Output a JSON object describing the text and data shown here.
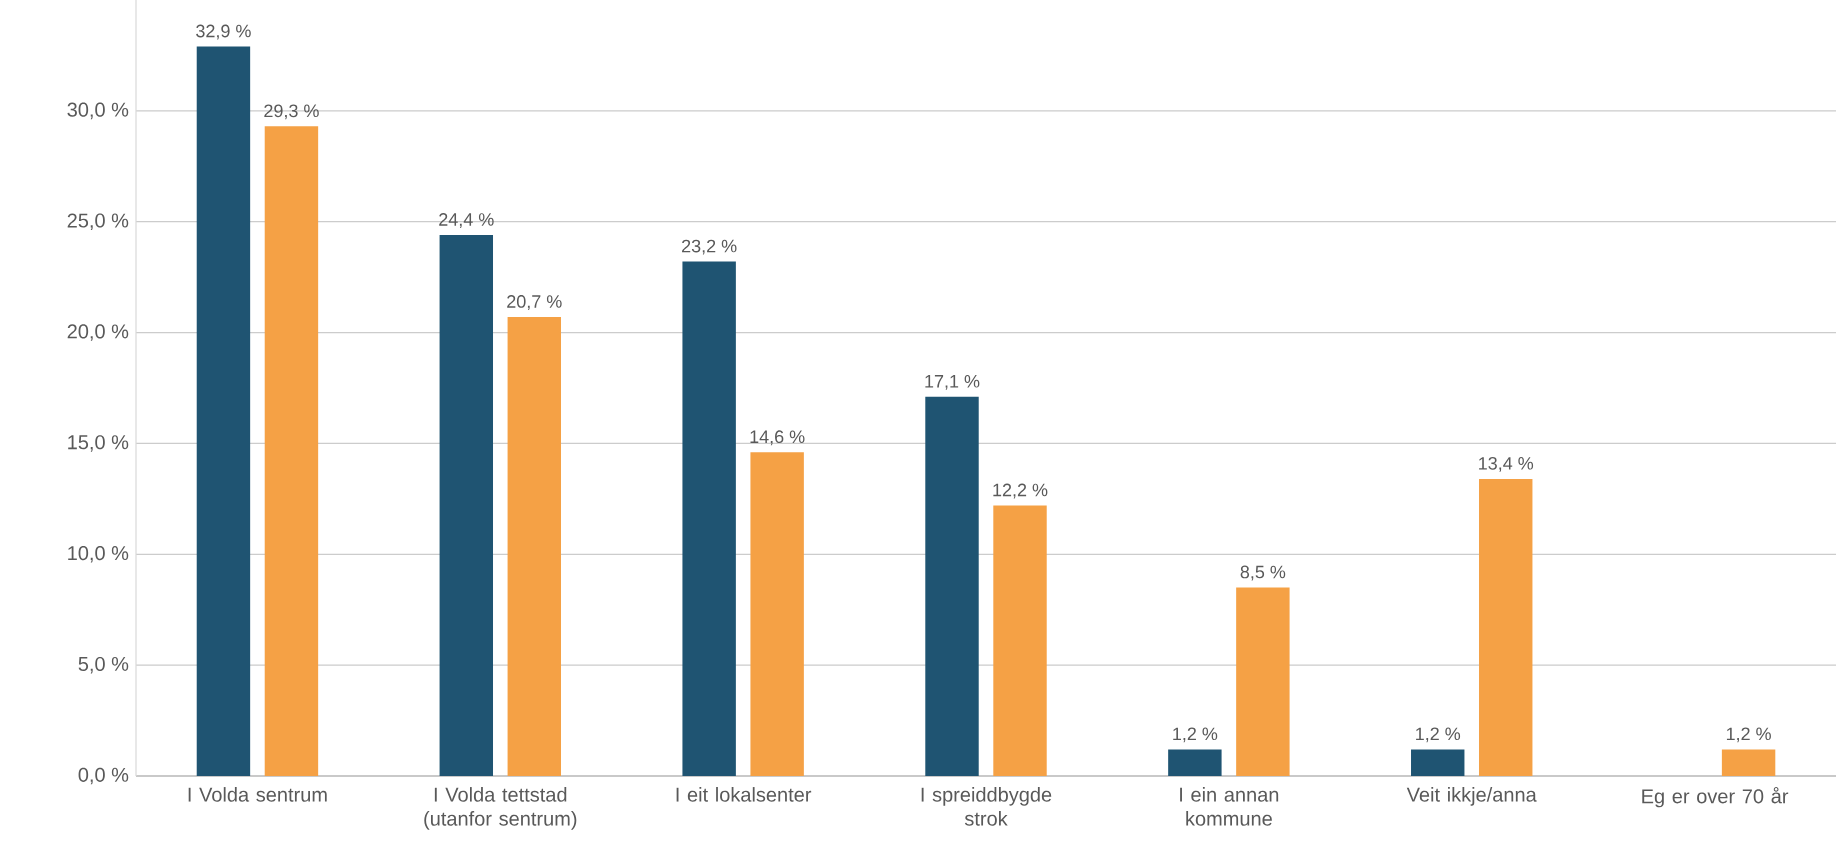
{
  "chart_data": {
    "type": "bar",
    "categories": [
      "I Volda sentrum",
      "I Volda tettstad (utanfor sentrum)",
      "I eit lokalsenter",
      "I spreiddbygde strok",
      "I ein annan kommune",
      "Veit ikkje/anna",
      "Eg er over 70 år"
    ],
    "series": [
      {
        "color": "#1f5472",
        "values": [
          32.9,
          24.4,
          23.2,
          17.1,
          1.2,
          1.2,
          null
        ],
        "value_labels": [
          "32,9 %",
          "24,4 %",
          "23,2 %",
          "17,1 %",
          "1,2 %",
          "1,2 %",
          null
        ]
      },
      {
        "color": "#f5a145",
        "values": [
          29.3,
          20.7,
          14.6,
          12.2,
          8.5,
          13.4,
          1.2
        ],
        "value_labels": [
          "29,3 %",
          "20,7 %",
          "14,6 %",
          "12,2 %",
          "8,5 %",
          "13,4 %",
          "1,2 %"
        ]
      }
    ],
    "ylim": [
      0,
      35
    ],
    "yticks": [
      {
        "value": 0,
        "label": "0,0 %"
      },
      {
        "value": 5,
        "label": "5,0 %"
      },
      {
        "value": 10,
        "label": "10,0 %"
      },
      {
        "value": 15,
        "label": "15,0 %"
      },
      {
        "value": 20,
        "label": "20,0 %"
      },
      {
        "value": 25,
        "label": "25,0 %"
      },
      {
        "value": 30,
        "label": "30,0 %"
      }
    ],
    "grid": "y"
  }
}
